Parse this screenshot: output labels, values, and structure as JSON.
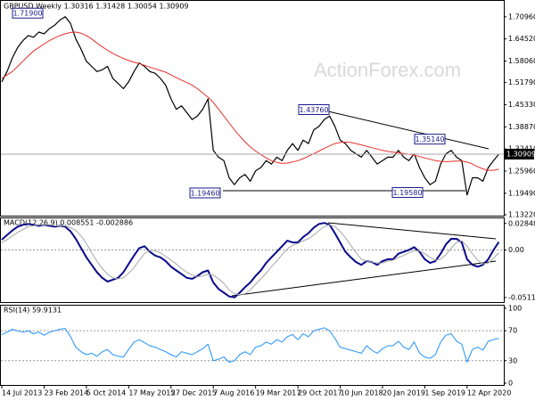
{
  "chart_data": [
    {
      "type": "line",
      "title": "GBPUSD,Weekly  1.30316 1.31428 1.30054 1.30909",
      "watermark": "ActionForex.com",
      "ylim": [
        1.127,
        1.756
      ],
      "yticks": [
        {
          "value": 1.7096,
          "label": "1.70960"
        },
        {
          "value": 1.6452,
          "label": "1.64520"
        },
        {
          "value": 1.5806,
          "label": "1.58060"
        },
        {
          "value": 1.5179,
          "label": "1.51790"
        },
        {
          "value": 1.4533,
          "label": "1.45330"
        },
        {
          "value": 1.3887,
          "label": "1.38870"
        },
        {
          "value": 1.3241,
          "label": "1.32410"
        },
        {
          "value": 1.2596,
          "label": "1.25960"
        },
        {
          "value": 1.1949,
          "label": "1.19490"
        },
        {
          "value": 1.1322,
          "label": "1.13220"
        }
      ],
      "last_price": {
        "value": 1.30909,
        "label": "1.30909"
      },
      "annotations": [
        {
          "value": 1.719,
          "label": "1.71900"
        },
        {
          "value": 1.4376,
          "label": "1.43760"
        },
        {
          "value": 1.3514,
          "label": "1.35140"
        },
        {
          "value": 1.1946,
          "label": "1.19460"
        },
        {
          "value": 1.1958,
          "label": "1.19580"
        }
      ],
      "series": [
        {
          "color": "#000000",
          "width": 1.2,
          "values": [
            1.52,
            1.55,
            1.59,
            1.62,
            1.64,
            1.655,
            1.65,
            1.665,
            1.66,
            1.675,
            1.685,
            1.7,
            1.71,
            1.69,
            1.645,
            1.615,
            1.58,
            1.565,
            1.55,
            1.555,
            1.565,
            1.53,
            1.515,
            1.5,
            1.52,
            1.55,
            1.575,
            1.565,
            1.55,
            1.545,
            1.53,
            1.51,
            1.47,
            1.44,
            1.45,
            1.43,
            1.41,
            1.42,
            1.44,
            1.47,
            1.32,
            1.3,
            1.29,
            1.24,
            1.22,
            1.24,
            1.25,
            1.23,
            1.26,
            1.27,
            1.29,
            1.28,
            1.3,
            1.29,
            1.32,
            1.34,
            1.32,
            1.35,
            1.34,
            1.38,
            1.39,
            1.41,
            1.42,
            1.39,
            1.35,
            1.34,
            1.32,
            1.31,
            1.3,
            1.32,
            1.3,
            1.28,
            1.29,
            1.3,
            1.3,
            1.32,
            1.3,
            1.29,
            1.31,
            1.27,
            1.24,
            1.22,
            1.23,
            1.28,
            1.31,
            1.32,
            1.3,
            1.29,
            1.19,
            1.24,
            1.24,
            1.23,
            1.27,
            1.29,
            1.309
          ]
        },
        {
          "color": "#e8302a",
          "width": 1,
          "values": [
            1.53,
            1.54,
            1.55,
            1.565,
            1.58,
            1.595,
            1.61,
            1.62,
            1.63,
            1.64,
            1.648,
            1.655,
            1.66,
            1.664,
            1.665,
            1.662,
            1.655,
            1.645,
            1.633,
            1.622,
            1.612,
            1.603,
            1.595,
            1.588,
            1.582,
            1.577,
            1.573,
            1.568,
            1.563,
            1.558,
            1.553,
            1.548,
            1.54,
            1.532,
            1.525,
            1.518,
            1.51,
            1.5,
            1.488,
            1.475,
            1.46,
            1.44,
            1.42,
            1.4,
            1.38,
            1.362,
            1.345,
            1.33,
            1.318,
            1.308,
            1.298,
            1.29,
            1.285,
            1.282,
            1.283,
            1.286,
            1.29,
            1.296,
            1.303,
            1.31,
            1.318,
            1.326,
            1.333,
            1.34,
            1.343,
            1.344,
            1.343,
            1.34,
            1.336,
            1.332,
            1.328,
            1.324,
            1.32,
            1.317,
            1.315,
            1.313,
            1.311,
            1.309,
            1.306,
            1.302,
            1.298,
            1.294,
            1.29,
            1.288,
            1.287,
            1.288,
            1.289,
            1.289,
            1.286,
            1.28,
            1.272,
            1.266,
            1.262,
            1.262,
            1.265
          ]
        }
      ]
    },
    {
      "type": "line",
      "title": "MACD(12,26,9) 0.008551 -0.002886",
      "ylim": [
        -0.057,
        0.034
      ],
      "yticks": [
        0.028489,
        {
          "value": 0,
          "label": "0.00"
        },
        -0.051125
      ],
      "levels": [
        0
      ],
      "series": [
        {
          "color": "#0a0a8c",
          "width": 2,
          "values": [
            0.011,
            0.016,
            0.021,
            0.025,
            0.027,
            0.028,
            0.027,
            0.026,
            0.027,
            0.026,
            0.025,
            0.026,
            0.025,
            0.02,
            0.012,
            0.002,
            -0.008,
            -0.016,
            -0.024,
            -0.03,
            -0.034,
            -0.032,
            -0.03,
            -0.024,
            -0.015,
            -0.006,
            0.002,
            0.004,
            -0.002,
            -0.006,
            -0.008,
            -0.012,
            -0.018,
            -0.022,
            -0.026,
            -0.03,
            -0.031,
            -0.028,
            -0.024,
            -0.022,
            -0.035,
            -0.042,
            -0.046,
            -0.05,
            -0.051,
            -0.046,
            -0.04,
            -0.035,
            -0.028,
            -0.022,
            -0.014,
            -0.008,
            -0.002,
            0.004,
            0.01,
            0.008,
            0.008,
            0.014,
            0.018,
            0.024,
            0.028,
            0.029,
            0.027,
            0.018,
            0.008,
            -0.002,
            -0.008,
            -0.013,
            -0.016,
            -0.012,
            -0.013,
            -0.016,
            -0.012,
            -0.01,
            -0.01,
            -0.004,
            -0.002,
            0.0,
            0.003,
            -0.002,
            -0.01,
            -0.014,
            -0.012,
            -0.004,
            0.006,
            0.012,
            0.012,
            0.008,
            -0.01,
            -0.016,
            -0.018,
            -0.016,
            -0.01,
            0.0,
            0.008551
          ]
        },
        {
          "color": "#a8a8a8",
          "width": 1,
          "values": [
            0.008,
            0.011,
            0.015,
            0.019,
            0.022,
            0.025,
            0.026,
            0.027,
            0.027,
            0.027,
            0.026,
            0.026,
            0.026,
            0.024,
            0.021,
            0.015,
            0.007,
            -0.003,
            -0.012,
            -0.02,
            -0.026,
            -0.03,
            -0.031,
            -0.03,
            -0.025,
            -0.019,
            -0.011,
            -0.004,
            0.0,
            -0.001,
            -0.003,
            -0.007,
            -0.011,
            -0.015,
            -0.02,
            -0.024,
            -0.027,
            -0.029,
            -0.028,
            -0.026,
            -0.027,
            -0.031,
            -0.036,
            -0.043,
            -0.047,
            -0.048,
            -0.047,
            -0.043,
            -0.037,
            -0.031,
            -0.025,
            -0.018,
            -0.012,
            -0.005,
            0.001,
            0.005,
            0.007,
            0.01,
            0.012,
            0.016,
            0.021,
            0.025,
            0.027,
            0.025,
            0.02,
            0.013,
            0.005,
            -0.003,
            -0.01,
            -0.012,
            -0.013,
            -0.014,
            -0.014,
            -0.012,
            -0.011,
            -0.008,
            -0.006,
            -0.003,
            -0.001,
            -0.001,
            -0.004,
            -0.008,
            -0.011,
            -0.01,
            -0.005,
            0.002,
            0.008,
            0.01,
            0.004,
            -0.004,
            -0.011,
            -0.015,
            -0.014,
            -0.009,
            -0.002886
          ]
        }
      ]
    },
    {
      "type": "line",
      "title": "RSI(14) 59.9131",
      "ylim": [
        -2.4,
        103.5
      ],
      "yticks": [
        100,
        70,
        30,
        0
      ],
      "levels": [
        70,
        30
      ],
      "categories": [
        "14 Jul 2013",
        null,
        null,
        null,
        null,
        null,
        null,
        null,
        "23 Feb 2014",
        null,
        null,
        null,
        null,
        null,
        null,
        null,
        "5 Oct 2014",
        null,
        null,
        null,
        null,
        null,
        null,
        null,
        "17 May 2015",
        null,
        null,
        null,
        null,
        null,
        null,
        null,
        "27 Dec 2015",
        null,
        null,
        null,
        null,
        null,
        null,
        null,
        "7 Aug 2016",
        null,
        null,
        null,
        null,
        null,
        null,
        null,
        "19 Mar 2017",
        null,
        null,
        null,
        null,
        null,
        null,
        null,
        "29 Oct 2017",
        null,
        null,
        null,
        null,
        null,
        null,
        null,
        "10 Jun 2018",
        null,
        null,
        null,
        null,
        null,
        null,
        null,
        "20 Jan 2019",
        null,
        null,
        null,
        null,
        null,
        null,
        null,
        "1 Sep 2019",
        null,
        null,
        null,
        null,
        null,
        null,
        null,
        "12 Apr 2020",
        null,
        null,
        null,
        null,
        null,
        null
      ],
      "series": [
        {
          "color": "#1e90ff",
          "width": 1,
          "values": [
            65,
            68,
            72,
            70,
            68,
            70,
            66,
            68,
            64,
            68,
            70,
            72,
            73,
            62,
            48,
            42,
            38,
            40,
            36,
            42,
            45,
            38,
            36,
            35,
            45,
            55,
            58,
            54,
            50,
            48,
            45,
            42,
            38,
            35,
            42,
            40,
            38,
            42,
            46,
            52,
            30,
            32,
            35,
            28,
            30,
            38,
            42,
            38,
            48,
            50,
            55,
            52,
            58,
            55,
            62,
            65,
            58,
            66,
            62,
            70,
            72,
            74,
            70,
            60,
            48,
            46,
            44,
            42,
            40,
            50,
            44,
            40,
            46,
            50,
            50,
            56,
            48,
            45,
            55,
            40,
            35,
            33,
            38,
            55,
            64,
            66,
            56,
            52,
            28,
            45,
            48,
            44,
            56,
            58,
            59.9131
          ]
        }
      ]
    }
  ]
}
